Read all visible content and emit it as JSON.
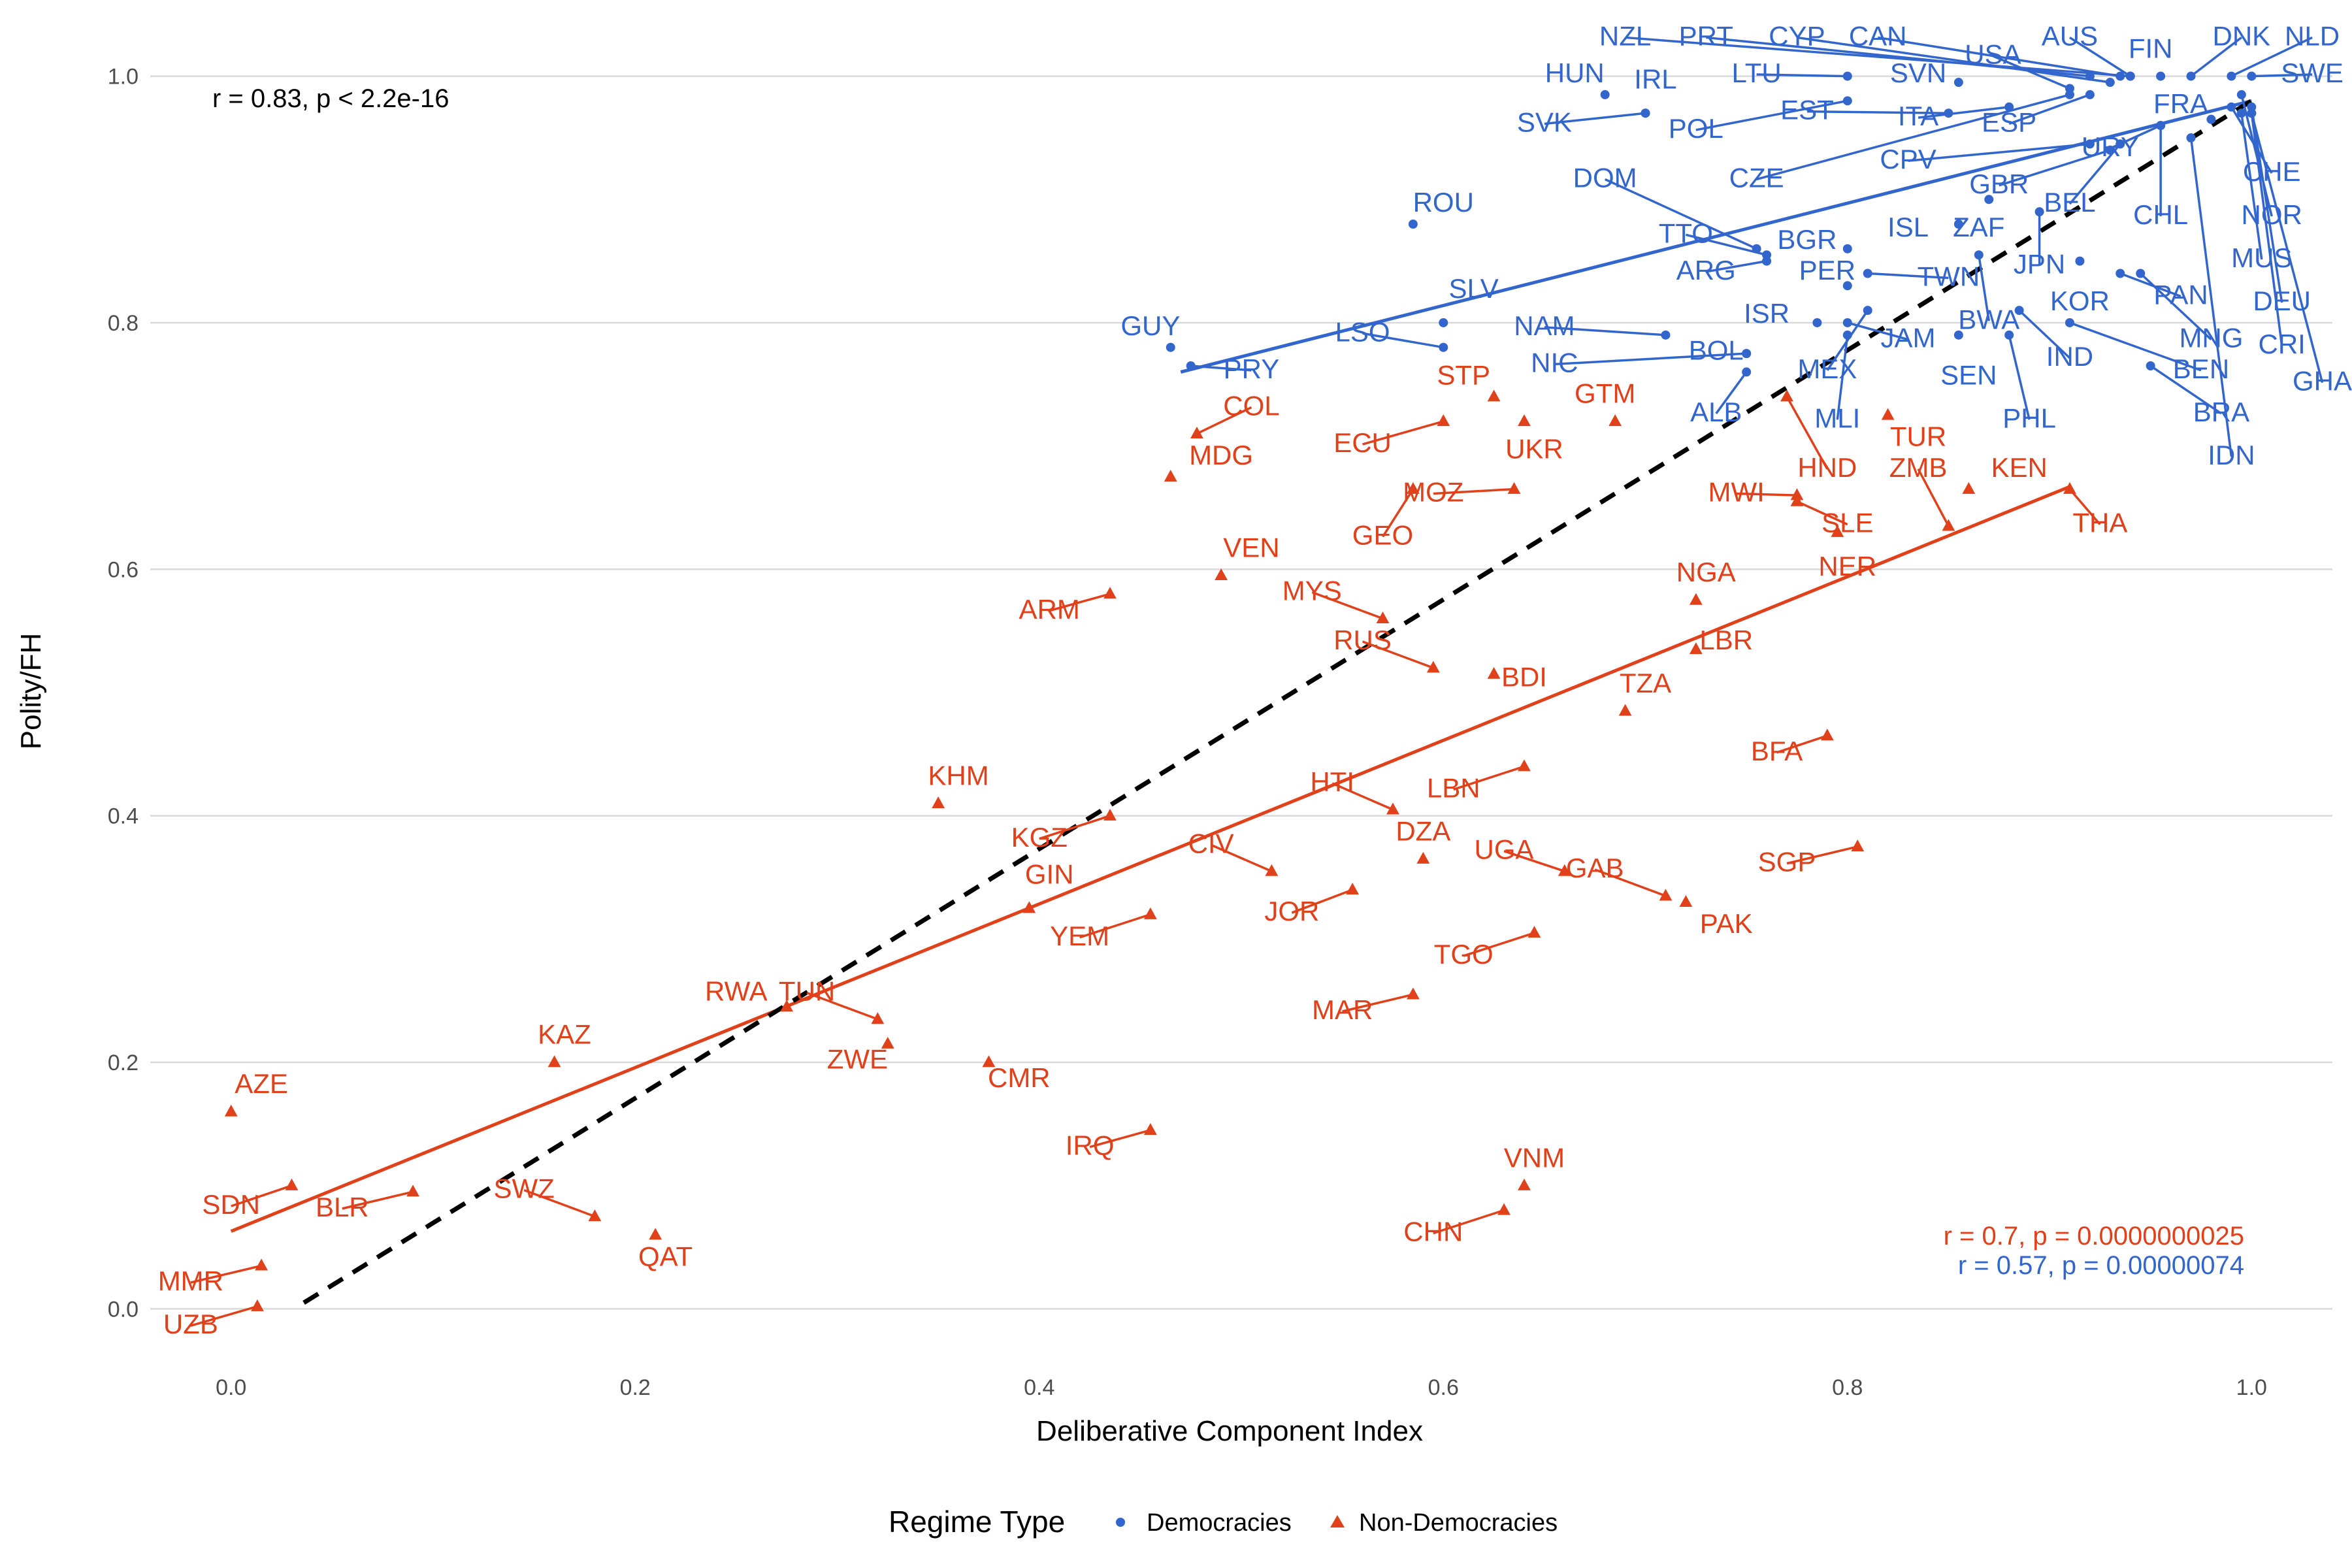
{
  "chart_data": {
    "type": "scatter",
    "xlabel": "Deliberative Component Index",
    "ylabel": "Polity/FH",
    "xlim": [
      -0.04,
      1.04
    ],
    "ylim": [
      -0.03,
      1.03
    ],
    "x_ticks": [
      "0.0",
      "0.2",
      "0.4",
      "0.6",
      "0.8",
      "1.0"
    ],
    "y_ticks": [
      "0.0",
      "0.2",
      "0.4",
      "0.6",
      "0.8",
      "1.0"
    ],
    "grid": "horizontal",
    "legend": {
      "title": "Regime Type",
      "placement": "bottom",
      "entries": [
        {
          "label": "Democracies",
          "color": "#3366cc",
          "shape": "circle"
        },
        {
          "label": "Non-Democracies",
          "color": "#e0401a",
          "shape": "triangle"
        }
      ]
    },
    "annotations": {
      "overall": {
        "text": "r = 0.83, p < 2.2e-16",
        "color": "#000000"
      },
      "nondem": {
        "text": "r = 0.7, p = 0.0000000025",
        "color": "#e0401a"
      },
      "dem": {
        "text": "r = 0.57, p = 0.00000074",
        "color": "#3366cc"
      }
    },
    "fit_lines": [
      {
        "name": "Democracies",
        "color": "#3366cc",
        "x": [
          0.47,
          1.0
        ],
        "y": [
          0.76,
          0.98
        ]
      },
      {
        "name": "Non-Democracies",
        "color": "#e0401a",
        "x": [
          0.0,
          0.91
        ],
        "y": [
          0.063,
          0.667
        ]
      },
      {
        "name": "Overall",
        "color": "#000000",
        "dashed": true,
        "x": [
          0.036,
          1.0
        ],
        "y": [
          0.005,
          0.98
        ]
      }
    ],
    "series": [
      {
        "name": "Democracies",
        "color": "#3366cc",
        "shape": "circle",
        "points": [
          {
            "label": "NZL",
            "x": 0.94,
            "y": 1.0,
            "lx": 0.69,
            "ly": 1.025
          },
          {
            "label": "PRT",
            "x": 0.92,
            "y": 1.0,
            "lx": 0.73,
            "ly": 1.025
          },
          {
            "label": "CYP",
            "x": 0.93,
            "y": 0.995,
            "lx": 0.775,
            "ly": 1.025
          },
          {
            "label": "CAN",
            "x": 0.935,
            "y": 1.0,
            "lx": 0.815,
            "ly": 1.025
          },
          {
            "label": "USA",
            "x": 0.91,
            "y": 0.99,
            "lx": 0.872,
            "ly": 1.01
          },
          {
            "label": "AUS",
            "x": 0.94,
            "y": 1.0,
            "lx": 0.91,
            "ly": 1.025
          },
          {
            "label": "FIN",
            "x": 0.955,
            "y": 1.0,
            "lx": 0.95,
            "ly": 1.015
          },
          {
            "label": "DNK",
            "x": 0.97,
            "y": 1.0,
            "lx": 0.995,
            "ly": 1.025
          },
          {
            "label": "NLD",
            "x": 0.99,
            "y": 1.0,
            "lx": 1.03,
            "ly": 1.025
          },
          {
            "label": "SWE",
            "x": 1.0,
            "y": 1.0,
            "lx": 1.03,
            "ly": 0.995
          },
          {
            "label": "HUN",
            "x": 0.68,
            "y": 0.985,
            "lx": 0.665,
            "ly": 0.995
          },
          {
            "label": "IRL",
            "x": 0.7,
            "y": 0.97,
            "lx": 0.705,
            "ly": 0.99
          },
          {
            "label": "LTU",
            "x": 0.8,
            "y": 1.0,
            "lx": 0.755,
            "ly": 0.995
          },
          {
            "label": "SVN",
            "x": 0.855,
            "y": 0.995,
            "lx": 0.835,
            "ly": 0.995
          },
          {
            "label": "SVK",
            "x": 0.7,
            "y": 0.97,
            "lx": 0.65,
            "ly": 0.955
          },
          {
            "label": "POL",
            "x": 0.8,
            "y": 0.98,
            "lx": 0.725,
            "ly": 0.95
          },
          {
            "label": "EST",
            "x": 0.85,
            "y": 0.97,
            "lx": 0.78,
            "ly": 0.965
          },
          {
            "label": "ITA",
            "x": 0.88,
            "y": 0.975,
            "lx": 0.835,
            "ly": 0.96
          },
          {
            "label": "ESP",
            "x": 0.92,
            "y": 0.985,
            "lx": 0.88,
            "ly": 0.955
          },
          {
            "label": "FRA",
            "x": 0.98,
            "y": 0.965,
            "lx": 0.965,
            "ly": 0.97
          },
          {
            "label": "CZE",
            "x": 0.91,
            "y": 0.985,
            "lx": 0.755,
            "ly": 0.91
          },
          {
            "label": "CPV",
            "x": 0.92,
            "y": 0.945,
            "lx": 0.83,
            "ly": 0.925
          },
          {
            "label": "URY",
            "x": 0.955,
            "y": 0.96,
            "lx": 0.93,
            "ly": 0.935
          },
          {
            "label": "DOM",
            "x": 0.755,
            "y": 0.86,
            "lx": 0.68,
            "ly": 0.91
          },
          {
            "label": "GBR",
            "x": 0.93,
            "y": 0.94,
            "lx": 0.875,
            "ly": 0.905
          },
          {
            "label": "BEL",
            "x": 0.935,
            "y": 0.945,
            "lx": 0.91,
            "ly": 0.89
          },
          {
            "label": "CHL",
            "x": 0.955,
            "y": 0.96,
            "lx": 0.955,
            "ly": 0.88
          },
          {
            "label": "CHE",
            "x": 0.99,
            "y": 0.975,
            "lx": 1.01,
            "ly": 0.915
          },
          {
            "label": "NOR",
            "x": 0.995,
            "y": 0.985,
            "lx": 1.01,
            "ly": 0.88
          },
          {
            "label": "TTO",
            "x": 0.76,
            "y": 0.855,
            "lx": 0.72,
            "ly": 0.865
          },
          {
            "label": "BGR",
            "x": 0.8,
            "y": 0.86,
            "lx": 0.78,
            "ly": 0.86
          },
          {
            "label": "ISL",
            "x": 0.855,
            "y": 0.88,
            "lx": 0.83,
            "ly": 0.87
          },
          {
            "label": "ZAF",
            "x": 0.87,
            "y": 0.9,
            "lx": 0.865,
            "ly": 0.87
          },
          {
            "label": "ARG",
            "x": 0.76,
            "y": 0.85,
            "lx": 0.73,
            "ly": 0.835
          },
          {
            "label": "PER",
            "x": 0.8,
            "y": 0.83,
            "lx": 0.79,
            "ly": 0.835
          },
          {
            "label": "TWN",
            "x": 0.81,
            "y": 0.84,
            "lx": 0.85,
            "ly": 0.83
          },
          {
            "label": "JPN",
            "x": 0.895,
            "y": 0.89,
            "lx": 0.895,
            "ly": 0.84
          },
          {
            "label": "MUS",
            "x": 0.995,
            "y": 0.97,
            "lx": 1.005,
            "ly": 0.845
          },
          {
            "label": "KOR",
            "x": 0.915,
            "y": 0.85,
            "lx": 0.915,
            "ly": 0.81
          },
          {
            "label": "PAN",
            "x": 0.935,
            "y": 0.84,
            "lx": 0.965,
            "ly": 0.815
          },
          {
            "label": "DEU",
            "x": 1.0,
            "y": 0.975,
            "lx": 1.015,
            "ly": 0.81
          },
          {
            "label": "ISR",
            "x": 0.785,
            "y": 0.8,
            "lx": 0.76,
            "ly": 0.8
          },
          {
            "label": "BWA",
            "x": 0.865,
            "y": 0.855,
            "lx": 0.87,
            "ly": 0.795
          },
          {
            "label": "MNG",
            "x": 0.945,
            "y": 0.84,
            "lx": 0.98,
            "ly": 0.78
          },
          {
            "label": "NAM",
            "x": 0.71,
            "y": 0.79,
            "lx": 0.65,
            "ly": 0.79
          },
          {
            "label": "JAM",
            "x": 0.8,
            "y": 0.8,
            "lx": 0.83,
            "ly": 0.78
          },
          {
            "label": "CRI",
            "x": 1.0,
            "y": 0.97,
            "lx": 1.015,
            "ly": 0.775
          },
          {
            "label": "BOL",
            "x": 0.75,
            "y": 0.775,
            "lx": 0.735,
            "ly": 0.77
          },
          {
            "label": "IND",
            "x": 0.885,
            "y": 0.81,
            "lx": 0.91,
            "ly": 0.765
          },
          {
            "label": "BEN",
            "x": 0.91,
            "y": 0.8,
            "lx": 0.975,
            "ly": 0.755
          },
          {
            "label": "NIC",
            "x": 0.75,
            "y": 0.775,
            "lx": 0.655,
            "ly": 0.76
          },
          {
            "label": "MEX",
            "x": 0.81,
            "y": 0.81,
            "lx": 0.79,
            "ly": 0.755
          },
          {
            "label": "SEN",
            "x": 0.855,
            "y": 0.79,
            "lx": 0.86,
            "ly": 0.75
          },
          {
            "label": "GHA",
            "x": 1.0,
            "y": 0.97,
            "lx": 1.035,
            "ly": 0.745
          },
          {
            "label": "ALB",
            "x": 0.75,
            "y": 0.76,
            "lx": 0.735,
            "ly": 0.72
          },
          {
            "label": "MLI",
            "x": 0.8,
            "y": 0.79,
            "lx": 0.795,
            "ly": 0.715
          },
          {
            "label": "PHL",
            "x": 0.88,
            "y": 0.79,
            "lx": 0.89,
            "ly": 0.715
          },
          {
            "label": "BRA",
            "x": 0.95,
            "y": 0.765,
            "lx": 0.985,
            "ly": 0.72
          },
          {
            "label": "IDN",
            "x": 0.97,
            "y": 0.95,
            "lx": 0.99,
            "ly": 0.685
          },
          {
            "label": "ROU",
            "x": 0.585,
            "y": 0.88,
            "lx": 0.6,
            "ly": 0.89
          },
          {
            "label": "SLV",
            "x": 0.6,
            "y": 0.8,
            "lx": 0.615,
            "ly": 0.82
          },
          {
            "label": "LSO",
            "x": 0.6,
            "y": 0.78,
            "lx": 0.56,
            "ly": 0.785
          },
          {
            "label": "GUY",
            "x": 0.465,
            "y": 0.78,
            "lx": 0.455,
            "ly": 0.79
          },
          {
            "label": "PRY",
            "x": 0.475,
            "y": 0.765,
            "lx": 0.505,
            "ly": 0.755
          }
        ]
      },
      {
        "name": "Non-Democracies",
        "color": "#e0401a",
        "shape": "triangle",
        "points": [
          {
            "label": "STP",
            "x": 0.625,
            "y": 0.74,
            "lx": 0.61,
            "ly": 0.75
          },
          {
            "label": "COL",
            "x": 0.478,
            "y": 0.71,
            "lx": 0.505,
            "ly": 0.725
          },
          {
            "label": "GTM",
            "x": 0.685,
            "y": 0.72,
            "lx": 0.68,
            "ly": 0.735
          },
          {
            "label": "ECU",
            "x": 0.6,
            "y": 0.72,
            "lx": 0.56,
            "ly": 0.695
          },
          {
            "label": "UKR",
            "x": 0.64,
            "y": 0.72,
            "lx": 0.645,
            "ly": 0.69
          },
          {
            "label": "MDG",
            "x": 0.465,
            "y": 0.675,
            "lx": 0.49,
            "ly": 0.685
          },
          {
            "label": "TUR",
            "x": 0.82,
            "y": 0.725,
            "lx": 0.835,
            "ly": 0.7
          },
          {
            "label": "HND",
            "x": 0.77,
            "y": 0.74,
            "lx": 0.79,
            "ly": 0.675
          },
          {
            "label": "ZMB",
            "x": 0.85,
            "y": 0.635,
            "lx": 0.835,
            "ly": 0.675
          },
          {
            "label": "KEN",
            "x": 0.86,
            "y": 0.665,
            "lx": 0.885,
            "ly": 0.675
          },
          {
            "label": "MOZ",
            "x": 0.635,
            "y": 0.665,
            "lx": 0.595,
            "ly": 0.655
          },
          {
            "label": "MWI",
            "x": 0.775,
            "y": 0.66,
            "lx": 0.745,
            "ly": 0.655
          },
          {
            "label": "SLE",
            "x": 0.775,
            "y": 0.655,
            "lx": 0.8,
            "ly": 0.63
          },
          {
            "label": "THA",
            "x": 0.91,
            "y": 0.665,
            "lx": 0.925,
            "ly": 0.63
          },
          {
            "label": "GEO",
            "x": 0.585,
            "y": 0.665,
            "lx": 0.57,
            "ly": 0.62
          },
          {
            "label": "NER",
            "x": 0.795,
            "y": 0.63,
            "lx": 0.8,
            "ly": 0.595
          },
          {
            "label": "VEN",
            "x": 0.49,
            "y": 0.595,
            "lx": 0.505,
            "ly": 0.61
          },
          {
            "label": "NGA",
            "x": 0.725,
            "y": 0.575,
            "lx": 0.73,
            "ly": 0.59
          },
          {
            "label": "ARM",
            "x": 0.435,
            "y": 0.58,
            "lx": 0.405,
            "ly": 0.56
          },
          {
            "label": "MYS",
            "x": 0.57,
            "y": 0.56,
            "lx": 0.535,
            "ly": 0.575
          },
          {
            "label": "RUS",
            "x": 0.595,
            "y": 0.52,
            "lx": 0.56,
            "ly": 0.535
          },
          {
            "label": "LBR",
            "x": 0.725,
            "y": 0.535,
            "lx": 0.74,
            "ly": 0.535
          },
          {
            "label": "BDI",
            "x": 0.625,
            "y": 0.515,
            "lx": 0.64,
            "ly": 0.505
          },
          {
            "label": "TZA",
            "x": 0.69,
            "y": 0.485,
            "lx": 0.7,
            "ly": 0.5
          },
          {
            "label": "BFA",
            "x": 0.79,
            "y": 0.465,
            "lx": 0.765,
            "ly": 0.445
          },
          {
            "label": "KHM",
            "x": 0.35,
            "y": 0.41,
            "lx": 0.36,
            "ly": 0.425
          },
          {
            "label": "HTI",
            "x": 0.575,
            "y": 0.405,
            "lx": 0.545,
            "ly": 0.42
          },
          {
            "label": "LBN",
            "x": 0.64,
            "y": 0.44,
            "lx": 0.605,
            "ly": 0.415
          },
          {
            "label": "KGZ",
            "x": 0.435,
            "y": 0.4,
            "lx": 0.4,
            "ly": 0.375
          },
          {
            "label": "CIV",
            "x": 0.515,
            "y": 0.355,
            "lx": 0.485,
            "ly": 0.37
          },
          {
            "label": "DZA",
            "x": 0.59,
            "y": 0.365,
            "lx": 0.59,
            "ly": 0.38
          },
          {
            "label": "UGA",
            "x": 0.66,
            "y": 0.355,
            "lx": 0.63,
            "ly": 0.365
          },
          {
            "label": "SGP",
            "x": 0.805,
            "y": 0.375,
            "lx": 0.77,
            "ly": 0.355
          },
          {
            "label": "GIN",
            "x": 0.395,
            "y": 0.325,
            "lx": 0.405,
            "ly": 0.345
          },
          {
            "label": "GAB",
            "x": 0.71,
            "y": 0.335,
            "lx": 0.675,
            "ly": 0.35
          },
          {
            "label": "JOR",
            "x": 0.555,
            "y": 0.34,
            "lx": 0.525,
            "ly": 0.315
          },
          {
            "label": "YEM",
            "x": 0.455,
            "y": 0.32,
            "lx": 0.42,
            "ly": 0.295
          },
          {
            "label": "PAK",
            "x": 0.72,
            "y": 0.33,
            "lx": 0.74,
            "ly": 0.305
          },
          {
            "label": "TGO",
            "x": 0.645,
            "y": 0.305,
            "lx": 0.61,
            "ly": 0.28
          },
          {
            "label": "RWA",
            "x": 0.275,
            "y": 0.245,
            "lx": 0.25,
            "ly": 0.25
          },
          {
            "label": "TUN",
            "x": 0.32,
            "y": 0.235,
            "lx": 0.285,
            "ly": 0.25
          },
          {
            "label": "MAR",
            "x": 0.585,
            "y": 0.255,
            "lx": 0.55,
            "ly": 0.235
          },
          {
            "label": "KAZ",
            "x": 0.16,
            "y": 0.2,
            "lx": 0.165,
            "ly": 0.215
          },
          {
            "label": "ZWE",
            "x": 0.325,
            "y": 0.215,
            "lx": 0.31,
            "ly": 0.195
          },
          {
            "label": "CMR",
            "x": 0.375,
            "y": 0.2,
            "lx": 0.39,
            "ly": 0.18
          },
          {
            "label": "AZE",
            "x": 0.0,
            "y": 0.16,
            "lx": 0.015,
            "ly": 0.175
          },
          {
            "label": "IRQ",
            "x": 0.455,
            "y": 0.145,
            "lx": 0.425,
            "ly": 0.125
          },
          {
            "label": "VNM",
            "x": 0.64,
            "y": 0.1,
            "lx": 0.645,
            "ly": 0.115
          },
          {
            "label": "SWZ",
            "x": 0.18,
            "y": 0.075,
            "lx": 0.145,
            "ly": 0.09
          },
          {
            "label": "BLR",
            "x": 0.09,
            "y": 0.095,
            "lx": 0.055,
            "ly": 0.075
          },
          {
            "label": "SDN",
            "x": 0.03,
            "y": 0.1,
            "lx": 0.0,
            "ly": 0.077
          },
          {
            "label": "QAT",
            "x": 0.21,
            "y": 0.06,
            "lx": 0.215,
            "ly": 0.035
          },
          {
            "label": "CHN",
            "x": 0.63,
            "y": 0.08,
            "lx": 0.595,
            "ly": 0.055
          },
          {
            "label": "MMR",
            "x": 0.015,
            "y": 0.035,
            "lx": -0.02,
            "ly": 0.015
          },
          {
            "label": "UZB",
            "x": 0.013,
            "y": 0.002,
            "lx": -0.02,
            "ly": -0.02
          }
        ]
      }
    ]
  }
}
